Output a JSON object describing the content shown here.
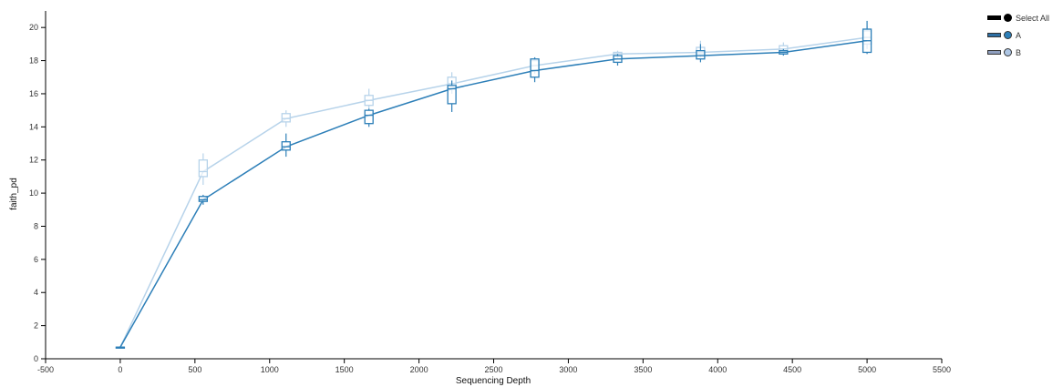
{
  "chart_data": {
    "type": "line",
    "xlabel": "Sequencing Depth",
    "ylabel": "faith_pd",
    "xlim": [
      -500,
      5500
    ],
    "ylim": [
      0,
      21
    ],
    "x_ticks": [
      "-500",
      "0",
      "500",
      "1000",
      "1500",
      "2000",
      "2500",
      "3000",
      "3500",
      "4000",
      "4500",
      "5000",
      "5500"
    ],
    "y_ticks": [
      "0",
      "2",
      "4",
      "6",
      "8",
      "10",
      "12",
      "14",
      "16",
      "18",
      "20"
    ],
    "grid": false,
    "legend_position": "top-right",
    "series": [
      {
        "name": "A",
        "color": "#2d7fb8",
        "x": [
          0,
          555,
          1110,
          1665,
          2220,
          2775,
          3330,
          3885,
          4440,
          5000
        ],
        "y": [
          0.7,
          9.6,
          12.8,
          14.7,
          16.3,
          17.4,
          18.1,
          18.3,
          18.5,
          19.2
        ],
        "box": [
          {
            "min": 0.7,
            "q1": 0.7,
            "median": 0.7,
            "q3": 0.7,
            "max": 0.7
          },
          {
            "min": 9.3,
            "q1": 9.5,
            "median": 9.6,
            "q3": 9.8,
            "max": 9.9
          },
          {
            "min": 12.2,
            "q1": 12.6,
            "median": 12.8,
            "q3": 13.1,
            "max": 13.6
          },
          {
            "min": 14.0,
            "q1": 14.2,
            "median": 14.7,
            "q3": 15.0,
            "max": 15.1
          },
          {
            "min": 14.9,
            "q1": 15.4,
            "median": 16.3,
            "q3": 16.5,
            "max": 16.8
          },
          {
            "min": 16.7,
            "q1": 17.0,
            "median": 17.4,
            "q3": 18.1,
            "max": 18.2
          },
          {
            "min": 17.7,
            "q1": 17.9,
            "median": 18.1,
            "q3": 18.3,
            "max": 18.4
          },
          {
            "min": 17.9,
            "q1": 18.1,
            "median": 18.3,
            "q3": 18.6,
            "max": 19.0
          },
          {
            "min": 18.3,
            "q1": 18.4,
            "median": 18.5,
            "q3": 18.6,
            "max": 18.7
          },
          {
            "min": 18.4,
            "q1": 18.5,
            "median": 19.2,
            "q3": 19.9,
            "max": 20.4
          }
        ]
      },
      {
        "name": "B",
        "color": "#b7d3ea",
        "x": [
          0,
          555,
          1110,
          1665,
          2220,
          2775,
          3330,
          3885,
          4440,
          5000
        ],
        "y": [
          0.7,
          11.3,
          14.5,
          15.6,
          16.6,
          17.7,
          18.4,
          18.5,
          18.7,
          19.4
        ],
        "box": [
          {
            "min": 0.7,
            "q1": 0.7,
            "median": 0.7,
            "q3": 0.7,
            "max": 0.7
          },
          {
            "min": 10.5,
            "q1": 11.0,
            "median": 11.3,
            "q3": 12.0,
            "max": 12.4
          },
          {
            "min": 14.0,
            "q1": 14.3,
            "median": 14.5,
            "q3": 14.8,
            "max": 15.0
          },
          {
            "min": 15.1,
            "q1": 15.3,
            "median": 15.6,
            "q3": 15.9,
            "max": 16.3
          },
          {
            "min": 16.0,
            "q1": 16.3,
            "median": 16.6,
            "q3": 17.0,
            "max": 17.3
          },
          {
            "min": 17.2,
            "q1": 17.4,
            "median": 17.7,
            "q3": 18.0,
            "max": 18.2
          },
          {
            "min": 18.1,
            "q1": 18.3,
            "median": 18.4,
            "q3": 18.5,
            "max": 18.6
          },
          {
            "min": 18.2,
            "q1": 18.4,
            "median": 18.5,
            "q3": 18.8,
            "max": 19.2
          },
          {
            "min": 18.4,
            "q1": 18.5,
            "median": 18.7,
            "q3": 18.9,
            "max": 19.1
          },
          {
            "min": 18.7,
            "q1": 19.0,
            "median": 19.4,
            "q3": 19.8,
            "max": 20.1
          }
        ]
      }
    ]
  },
  "legend": {
    "select_all_label": "Select All",
    "select_all_color": "#000000",
    "items": [
      {
        "label": "A",
        "line_color": "#2d6ea3",
        "dot_color": "#2d7fb8"
      },
      {
        "label": "B",
        "line_color": "#8f9fbf",
        "dot_color": "#aec6e4"
      }
    ]
  }
}
